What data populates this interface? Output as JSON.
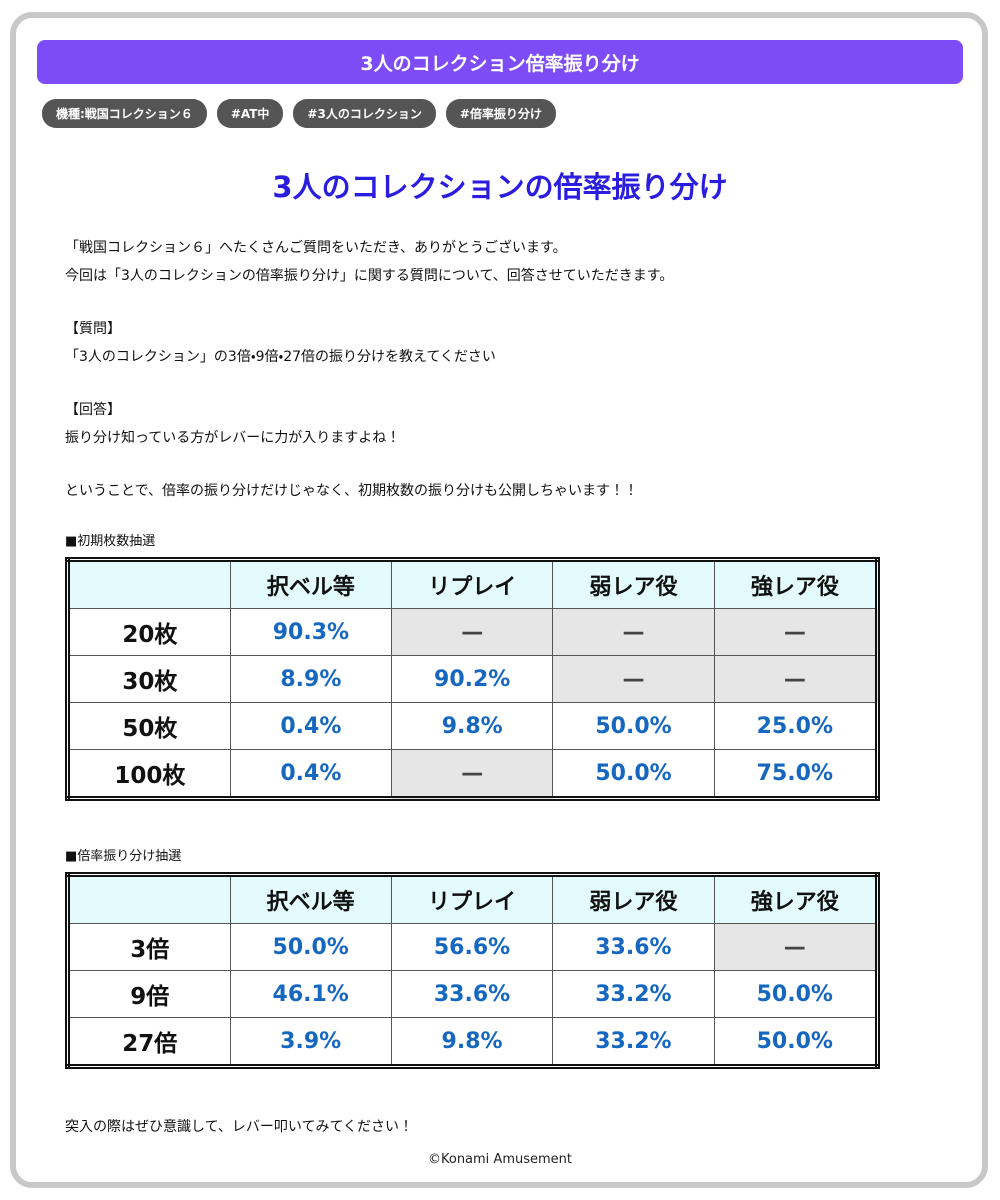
{
  "header": {
    "title": "3人のコレクション倍率振り分け"
  },
  "tags": [
    "機種:戦国コレクション６",
    "#AT中",
    "#3人のコレクション",
    "#倍率振り分け"
  ],
  "article": {
    "heading": "3人のコレクションの倍率振り分け",
    "paragraphs": [
      {
        "lines": [
          "「戦国コレクション６」へたくさんご質問をいただき、ありがとうございます。",
          "今回は「3人のコレクションの倍率振り分け」に関する質問について、回答させていただきます。"
        ]
      },
      {
        "lines": [
          "【質問】",
          "「3人のコレクション」の3倍・9倍・27倍の振り分けを教えてください"
        ]
      },
      {
        "lines": [
          "【回答】",
          "振り分け知っている方がレバーに力が入りますよね！"
        ]
      },
      {
        "lines": [
          "ということで、倍率の振り分けだけじゃなく、初期枚数の振り分けも公開しちゃいます！！"
        ]
      }
    ],
    "tables": [
      {
        "caption": "■初期枚数抽選",
        "columns": [
          "択ベル等",
          "リプレイ",
          "弱レア役",
          "強レア役"
        ],
        "rows": [
          [
            "20枚",
            "90.3%",
            "—",
            "—",
            "—"
          ],
          [
            "30枚",
            "8.9%",
            "90.2%",
            "—",
            "—"
          ],
          [
            "50枚",
            "0.4%",
            "9.8%",
            "50.0%",
            "25.0%"
          ],
          [
            "100枚",
            "0.4%",
            "—",
            "50.0%",
            "75.0%"
          ]
        ]
      },
      {
        "caption": "■倍率振り分け抽選",
        "columns": [
          "択ベル等",
          "リプレイ",
          "弱レア役",
          "強レア役"
        ],
        "rows": [
          [
            "3倍",
            "50.0%",
            "56.6%",
            "33.6%",
            "—"
          ],
          [
            "9倍",
            "46.1%",
            "33.6%",
            "33.2%",
            "50.0%"
          ],
          [
            "27倍",
            "3.9%",
            "9.8%",
            "33.2%",
            "50.0%"
          ]
        ]
      }
    ],
    "closing": "突入の際はぜひ意識して、レバー叩いてみてください！"
  },
  "footer": {
    "copyright": "©Konami Amusement"
  }
}
